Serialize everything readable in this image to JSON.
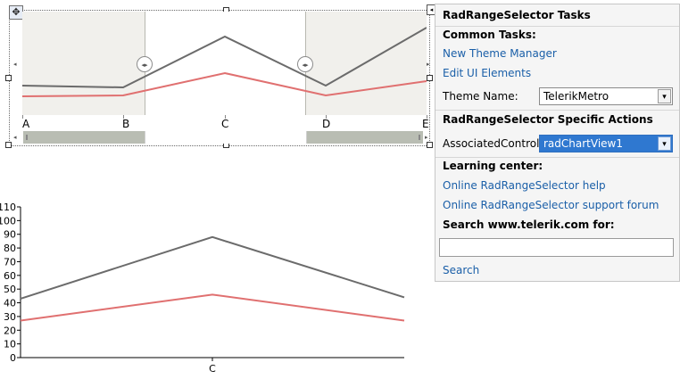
{
  "range_selector": {
    "move_glyph": "✥",
    "smart_tag_glyph": "◂",
    "axis_labels": [
      "A",
      "B",
      "C",
      "D",
      "E"
    ],
    "thumb_left_glyph": "◂▸",
    "thumb_right_glyph": "◂▸",
    "left_arrow": "◂",
    "right_arrow": "▸",
    "scroll_left": "◂",
    "scroll_right": "▸",
    "series_colors": [
      "#6b6b6b",
      "#e07070"
    ]
  },
  "tasks_panel": {
    "title": "RadRangeSelector Tasks",
    "common_tasks_heading": "Common Tasks:",
    "new_theme_manager": "New Theme Manager",
    "edit_ui_elements": "Edit UI Elements",
    "theme_name_label": "Theme Name:",
    "theme_name_value": "TelerikMetro",
    "specific_actions_heading": "RadRangeSelector Specific Actions",
    "associated_control_label": "AssociatedControl:",
    "associated_control_value": "radChartView1",
    "learning_center_heading": "Learning center:",
    "online_help": "Online RadRangeSelector help",
    "support_forum": "Online RadRangeSelector support forum",
    "search_heading": "Search www.telerik.com for:",
    "search_value": "",
    "search_link": "Search",
    "dropdown_glyph": "▾"
  },
  "chart_data": {
    "type": "line",
    "categories": [
      "C"
    ],
    "x": [
      0,
      0.5,
      1
    ],
    "series": [
      {
        "values": [
          43,
          88,
          44
        ],
        "color": "#6b6b6b"
      },
      {
        "values": [
          27,
          46,
          27
        ],
        "color": "#e07070"
      }
    ],
    "yticks": [
      "0",
      "10",
      "20",
      "30",
      "40",
      "50",
      "60",
      "70",
      "80",
      "90",
      "100",
      "110"
    ],
    "ylim": [
      0,
      110
    ]
  }
}
